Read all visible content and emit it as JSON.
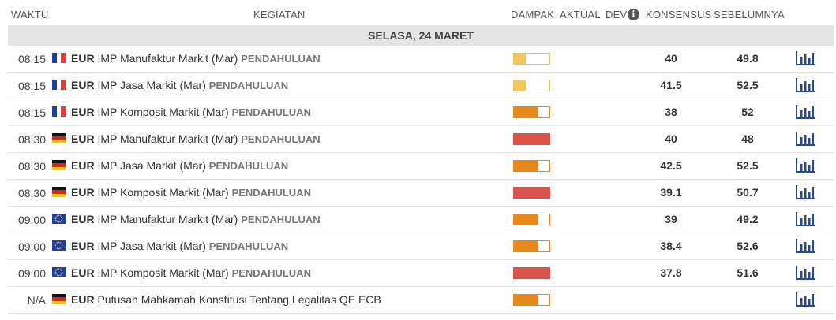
{
  "header": {
    "waktu": "WAKTU",
    "kegiatan": "KEGIATAN",
    "dampak": "DAMPAK",
    "aktual": "AKTUAL",
    "dev": "DEV",
    "konsensus": "KONSENSUS",
    "sebelumnya": "SEBELUMNYA"
  },
  "day_label": "SELASA, 24 MARET",
  "colors": {
    "impact_low": "#f3c75a",
    "impact_medium": "#e8891e",
    "impact_high": "#d9534a",
    "chart_icon": "#2a4a8a"
  },
  "rows": [
    {
      "time": "08:15",
      "flag": "france-flag",
      "currency": "EUR",
      "event": "IMP Manufaktur Markit (Mar)",
      "tag": "PENDAHULUAN",
      "impact": "low",
      "impact_level": 0.33,
      "actual": "",
      "consensus": "40",
      "previous": "49.8",
      "icon": "chart-icon"
    },
    {
      "time": "08:15",
      "flag": "france-flag",
      "currency": "EUR",
      "event": "IMP Jasa Markit (Mar)",
      "tag": "PENDAHULUAN",
      "impact": "low",
      "impact_level": 0.33,
      "actual": "",
      "consensus": "41.5",
      "previous": "52.5",
      "icon": "chart-icon"
    },
    {
      "time": "08:15",
      "flag": "france-flag",
      "currency": "EUR",
      "event": "IMP Komposit Markit (Mar)",
      "tag": "PENDAHULUAN",
      "impact": "medium",
      "impact_level": 0.66,
      "actual": "",
      "consensus": "38",
      "previous": "52",
      "icon": "chart-icon"
    },
    {
      "time": "08:30",
      "flag": "germany-flag",
      "currency": "EUR",
      "event": "IMP Manufaktur Markit (Mar)",
      "tag": "PENDAHULUAN",
      "impact": "high",
      "impact_level": 1.0,
      "actual": "",
      "consensus": "40",
      "previous": "48",
      "icon": "chart-icon"
    },
    {
      "time": "08:30",
      "flag": "germany-flag",
      "currency": "EUR",
      "event": "IMP Jasa Markit (Mar)",
      "tag": "PENDAHULUAN",
      "impact": "medium",
      "impact_level": 0.66,
      "actual": "",
      "consensus": "42.5",
      "previous": "52.5",
      "icon": "chart-icon"
    },
    {
      "time": "08:30",
      "flag": "germany-flag",
      "currency": "EUR",
      "event": "IMP Komposit Markit (Mar)",
      "tag": "PENDAHULUAN",
      "impact": "high",
      "impact_level": 1.0,
      "actual": "",
      "consensus": "39.1",
      "previous": "50.7",
      "icon": "chart-icon"
    },
    {
      "time": "09:00",
      "flag": "eu-flag",
      "currency": "EUR",
      "event": "IMP Manufaktur Markit (Mar)",
      "tag": "PENDAHULUAN",
      "impact": "medium",
      "impact_level": 0.66,
      "actual": "",
      "consensus": "39",
      "previous": "49.2",
      "icon": "chart-icon"
    },
    {
      "time": "09:00",
      "flag": "eu-flag",
      "currency": "EUR",
      "event": "IMP Jasa Markit (Mar)",
      "tag": "PENDAHULUAN",
      "impact": "medium",
      "impact_level": 0.66,
      "actual": "",
      "consensus": "38.4",
      "previous": "52.6",
      "icon": "chart-icon"
    },
    {
      "time": "09:00",
      "flag": "eu-flag",
      "currency": "EUR",
      "event": "IMP Komposit Markit (Mar)",
      "tag": "PENDAHULUAN",
      "impact": "high",
      "impact_level": 1.0,
      "actual": "",
      "consensus": "37.8",
      "previous": "51.6",
      "icon": "chart-icon"
    },
    {
      "time": "N/A",
      "flag": "germany-flag",
      "currency": "EUR",
      "event": "Putusan Mahkamah Konstitusi Tentang Legalitas QE ECB",
      "tag": "",
      "impact": "medium",
      "impact_level": 0.66,
      "actual": "",
      "consensus": "",
      "previous": "",
      "icon": "chart-icon"
    }
  ]
}
